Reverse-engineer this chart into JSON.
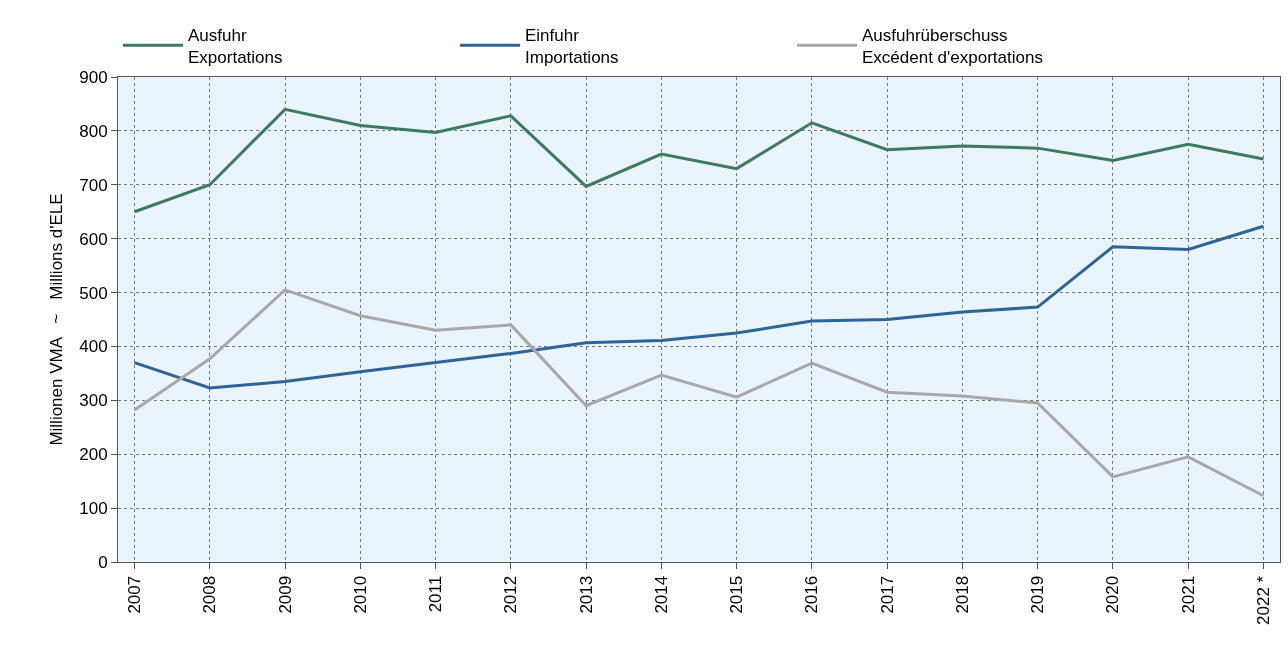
{
  "chart_data": {
    "type": "line",
    "ylabel": "Millionen VMA   ~   Millions d'ELE",
    "categories": [
      "2007",
      "2008",
      "2009",
      "2010",
      "2011",
      "2012",
      "2013",
      "2014",
      "2015",
      "2016",
      "2017",
      "2018",
      "2019",
      "2020",
      "2021",
      "2022 *"
    ],
    "series": [
      {
        "name": "Ausfuhr\nExportations",
        "color": "#3d7a5f",
        "values": [
          650,
          700,
          840,
          810,
          797,
          828,
          697,
          757,
          730,
          815,
          765,
          772,
          768,
          745,
          775,
          748
        ]
      },
      {
        "name": "Einfuhr\nImportations",
        "color": "#2f6496",
        "values": [
          370,
          323,
          335,
          353,
          370,
          387,
          407,
          411,
          425,
          447,
          450,
          464,
          473,
          585,
          580,
          623
        ]
      },
      {
        "name": "Ausfuhrüberschuss\nExcédent d'exportations",
        "color": "#a8a8aa",
        "values": [
          282,
          377,
          505,
          457,
          430,
          440,
          290,
          347,
          306,
          369,
          315,
          308,
          295,
          158,
          195,
          123
        ]
      }
    ],
    "ylim": [
      0,
      900
    ],
    "yticks": [
      0,
      100,
      200,
      300,
      400,
      500,
      600,
      700,
      800,
      900
    ],
    "grid": true,
    "legend": "top left",
    "marker": "none",
    "line_style": "solid"
  }
}
